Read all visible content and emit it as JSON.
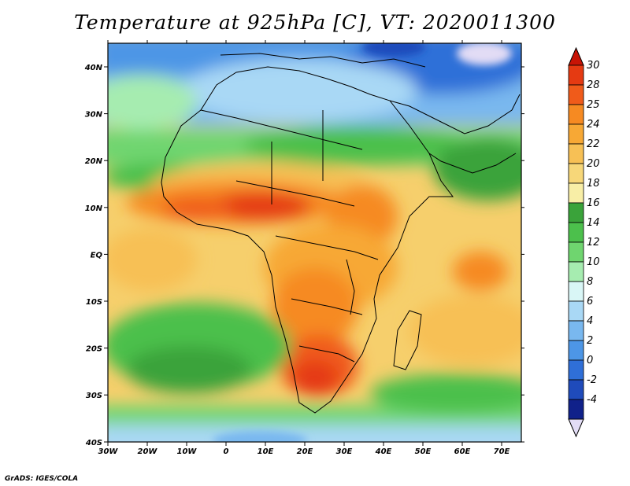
{
  "title": "Temperature at 925hPa [C], VT: 2020011300",
  "credit": "GrADS: IGES/COLA",
  "map": {
    "x_ticks": [
      "30W",
      "20W",
      "10W",
      "0",
      "10E",
      "20E",
      "30E",
      "40E",
      "50E",
      "60E",
      "70E"
    ],
    "y_ticks": [
      "40N",
      "30N",
      "20N",
      "10N",
      "EQ",
      "10S",
      "20S",
      "30S",
      "40S"
    ]
  },
  "colorbar": {
    "levels": [
      "30",
      "28",
      "25",
      "24",
      "22",
      "20",
      "18",
      "16",
      "14",
      "12",
      "10",
      "8",
      "6",
      "4",
      "2",
      "0",
      "-2",
      "-4"
    ],
    "colors": [
      "#e53a12",
      "#f05b1a",
      "#f68a22",
      "#f7a835",
      "#f7c055",
      "#f7d779",
      "#f8eea6",
      "#3aa33a",
      "#4cc04c",
      "#6fd56f",
      "#a6ecb0",
      "#d9f6f6",
      "#a9d8f5",
      "#79b8ef",
      "#4d96e6",
      "#2f6fd8",
      "#1f4bbb",
      "#10218a"
    ],
    "top_color": "#c81406",
    "bottom_color": "#e2dcf5"
  }
}
